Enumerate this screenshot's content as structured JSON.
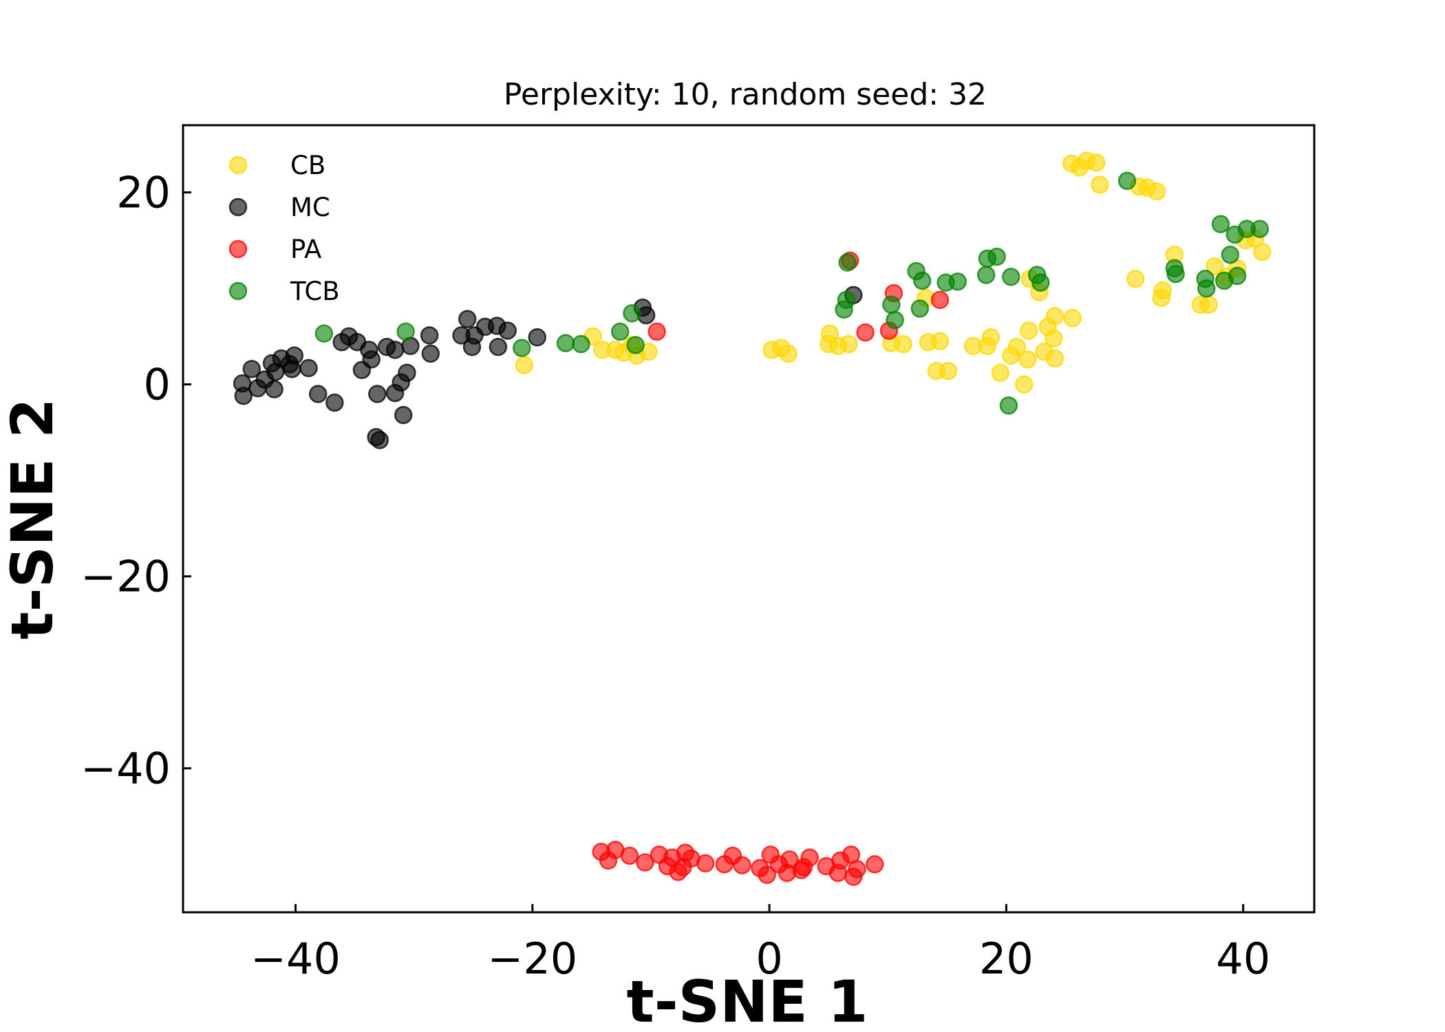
{
  "chart_data": {
    "type": "scatter",
    "title": "Perplexity: 10, random seed: 32",
    "xlabel": "t-SNE 1",
    "ylabel": "t-SNE 2",
    "xlim": [
      -49.5,
      46
    ],
    "ylim": [
      -55,
      27
    ],
    "xticks": [
      -40,
      -20,
      0,
      20,
      40
    ],
    "yticks": [
      20,
      0,
      -20,
      -40
    ],
    "xtick_labels": [
      "−40",
      "−20",
      "0",
      "20",
      "40"
    ],
    "ytick_labels": [
      "20",
      "0",
      "−20",
      "−40"
    ],
    "grid": false,
    "legend_position": "top-left",
    "series": [
      {
        "name": "CB",
        "color": "#FFD700",
        "points": [
          [
            25.5,
            23.0
          ],
          [
            26.2,
            22.6
          ],
          [
            26.8,
            23.3
          ],
          [
            27.6,
            23.1
          ],
          [
            27.9,
            20.8
          ],
          [
            31.2,
            20.6
          ],
          [
            31.9,
            20.5
          ],
          [
            32.7,
            20.1
          ],
          [
            34.2,
            13.5
          ],
          [
            37.6,
            12.3
          ],
          [
            38.5,
            11.2
          ],
          [
            39.5,
            12.1
          ],
          [
            40.2,
            15.0
          ],
          [
            41.0,
            15.2
          ],
          [
            41.6,
            13.8
          ],
          [
            30.9,
            11.0
          ],
          [
            33.2,
            9.8
          ],
          [
            33.1,
            9.0
          ],
          [
            36.4,
            8.3
          ],
          [
            37.1,
            8.3
          ],
          [
            22.0,
            11.0
          ],
          [
            22.8,
            9.6
          ],
          [
            25.6,
            6.9
          ],
          [
            24.1,
            7.1
          ],
          [
            23.5,
            6.0
          ],
          [
            21.9,
            5.6
          ],
          [
            24.0,
            4.8
          ],
          [
            23.2,
            3.4
          ],
          [
            24.1,
            2.7
          ],
          [
            21.8,
            2.6
          ],
          [
            20.4,
            3.0
          ],
          [
            20.9,
            3.9
          ],
          [
            19.5,
            1.2
          ],
          [
            21.5,
            0.0
          ],
          [
            18.7,
            4.9
          ],
          [
            18.4,
            4.0
          ],
          [
            17.2,
            4.0
          ],
          [
            13.2,
            9.0
          ],
          [
            13.4,
            4.4
          ],
          [
            14.4,
            4.5
          ],
          [
            14.1,
            1.4
          ],
          [
            15.1,
            1.4
          ],
          [
            10.3,
            4.3
          ],
          [
            11.3,
            4.2
          ],
          [
            6.7,
            4.2
          ],
          [
            5.0,
            4.2
          ],
          [
            5.8,
            4.0
          ],
          [
            5.1,
            5.3
          ],
          [
            0.2,
            3.6
          ],
          [
            1.0,
            3.8
          ],
          [
            1.6,
            3.2
          ],
          [
            -12.3,
            3.3
          ],
          [
            -11.2,
            3.0
          ],
          [
            -10.2,
            3.4
          ],
          [
            -11.6,
            4.1
          ],
          [
            -14.1,
            3.6
          ],
          [
            -14.9,
            5.0
          ],
          [
            -13.0,
            3.6
          ],
          [
            -20.7,
            2.0
          ]
        ]
      },
      {
        "name": "MC",
        "color": "#000000",
        "points": [
          [
            -44.5,
            0.1
          ],
          [
            -44.4,
            -1.2
          ],
          [
            -43.2,
            -0.4
          ],
          [
            -42.6,
            0.5
          ],
          [
            -43.7,
            1.6
          ],
          [
            -42.0,
            2.2
          ],
          [
            -41.7,
            1.3
          ],
          [
            -41.2,
            2.7
          ],
          [
            -40.5,
            2.1
          ],
          [
            -40.1,
            3.0
          ],
          [
            -40.3,
            1.6
          ],
          [
            -38.9,
            1.7
          ],
          [
            -41.8,
            -0.5
          ],
          [
            -38.1,
            -1.0
          ],
          [
            -36.7,
            -1.9
          ],
          [
            -36.1,
            4.4
          ],
          [
            -35.5,
            5.0
          ],
          [
            -34.8,
            4.4
          ],
          [
            -33.8,
            3.6
          ],
          [
            -33.6,
            2.6
          ],
          [
            -32.3,
            3.9
          ],
          [
            -31.6,
            3.6
          ],
          [
            -31.1,
            0.2
          ],
          [
            -30.6,
            1.2
          ],
          [
            -30.3,
            4.0
          ],
          [
            -34.4,
            1.5
          ],
          [
            -33.1,
            -1.0
          ],
          [
            -31.6,
            -0.9
          ],
          [
            -30.9,
            -3.2
          ],
          [
            -33.2,
            -5.5
          ],
          [
            -32.9,
            -5.8
          ],
          [
            -28.7,
            5.1
          ],
          [
            -28.6,
            3.2
          ],
          [
            -25.5,
            6.8
          ],
          [
            -26.0,
            5.1
          ],
          [
            -25.1,
            3.9
          ],
          [
            -24.9,
            5.1
          ],
          [
            -24.0,
            6.0
          ],
          [
            -23.0,
            6.1
          ],
          [
            -22.1,
            5.6
          ],
          [
            -22.9,
            3.9
          ],
          [
            -19.6,
            4.9
          ],
          [
            -10.7,
            8.0
          ],
          [
            -10.4,
            7.2
          ],
          [
            7.1,
            9.3
          ]
        ]
      },
      {
        "name": "PA",
        "color": "#FF0000",
        "points": [
          [
            6.8,
            12.9
          ],
          [
            10.5,
            9.5
          ],
          [
            14.4,
            8.8
          ],
          [
            10.1,
            5.6
          ],
          [
            8.1,
            5.4
          ],
          [
            -9.5,
            5.5
          ],
          [
            -14.2,
            -48.7
          ],
          [
            -13.0,
            -48.5
          ],
          [
            -11.8,
            -49.1
          ],
          [
            -10.5,
            -49.8
          ],
          [
            -9.3,
            -49.0
          ],
          [
            -8.2,
            -49.3
          ],
          [
            -7.1,
            -48.8
          ],
          [
            -6.6,
            -49.4
          ],
          [
            -5.4,
            -49.9
          ],
          [
            -3.8,
            -50.0
          ],
          [
            -3.1,
            -49.1
          ],
          [
            -2.3,
            -50.1
          ],
          [
            -0.8,
            -50.4
          ],
          [
            0.1,
            -49.0
          ],
          [
            0.8,
            -50.0
          ],
          [
            1.7,
            -49.5
          ],
          [
            2.9,
            -50.3
          ],
          [
            3.4,
            -49.3
          ],
          [
            4.8,
            -50.2
          ],
          [
            6.0,
            -49.6
          ],
          [
            6.9,
            -49.0
          ],
          [
            7.4,
            -50.5
          ],
          [
            8.9,
            -50.0
          ],
          [
            -13.6,
            -49.6
          ],
          [
            -8.6,
            -50.2
          ],
          [
            -7.3,
            -50.3
          ],
          [
            -0.2,
            -51.1
          ],
          [
            1.5,
            -50.9
          ],
          [
            2.7,
            -50.6
          ],
          [
            5.8,
            -50.9
          ],
          [
            7.1,
            -51.3
          ],
          [
            -7.7,
            -50.8
          ]
        ]
      },
      {
        "name": "TCB",
        "color": "#008000",
        "points": [
          [
            30.2,
            21.2
          ],
          [
            38.1,
            16.7
          ],
          [
            39.3,
            15.6
          ],
          [
            40.3,
            16.2
          ],
          [
            41.4,
            16.2
          ],
          [
            34.2,
            12.1
          ],
          [
            34.3,
            11.5
          ],
          [
            36.8,
            11.0
          ],
          [
            36.9,
            10.0
          ],
          [
            38.4,
            10.8
          ],
          [
            38.9,
            13.5
          ],
          [
            39.5,
            11.3
          ],
          [
            18.4,
            13.1
          ],
          [
            19.2,
            13.3
          ],
          [
            18.3,
            11.4
          ],
          [
            20.4,
            11.2
          ],
          [
            22.6,
            11.4
          ],
          [
            22.9,
            10.6
          ],
          [
            12.4,
            11.8
          ],
          [
            12.9,
            10.8
          ],
          [
            14.9,
            10.6
          ],
          [
            15.9,
            10.7
          ],
          [
            12.7,
            7.9
          ],
          [
            10.3,
            8.3
          ],
          [
            10.6,
            6.7
          ],
          [
            6.3,
            7.8
          ],
          [
            6.5,
            8.8
          ],
          [
            6.6,
            12.7
          ],
          [
            20.2,
            -2.2
          ],
          [
            -11.6,
            7.4
          ],
          [
            -12.6,
            5.5
          ],
          [
            -11.3,
            4.1
          ],
          [
            -15.9,
            4.2
          ],
          [
            -17.2,
            4.3
          ],
          [
            -20.9,
            3.8
          ],
          [
            -37.6,
            5.3
          ],
          [
            -30.7,
            5.5
          ]
        ]
      }
    ]
  }
}
